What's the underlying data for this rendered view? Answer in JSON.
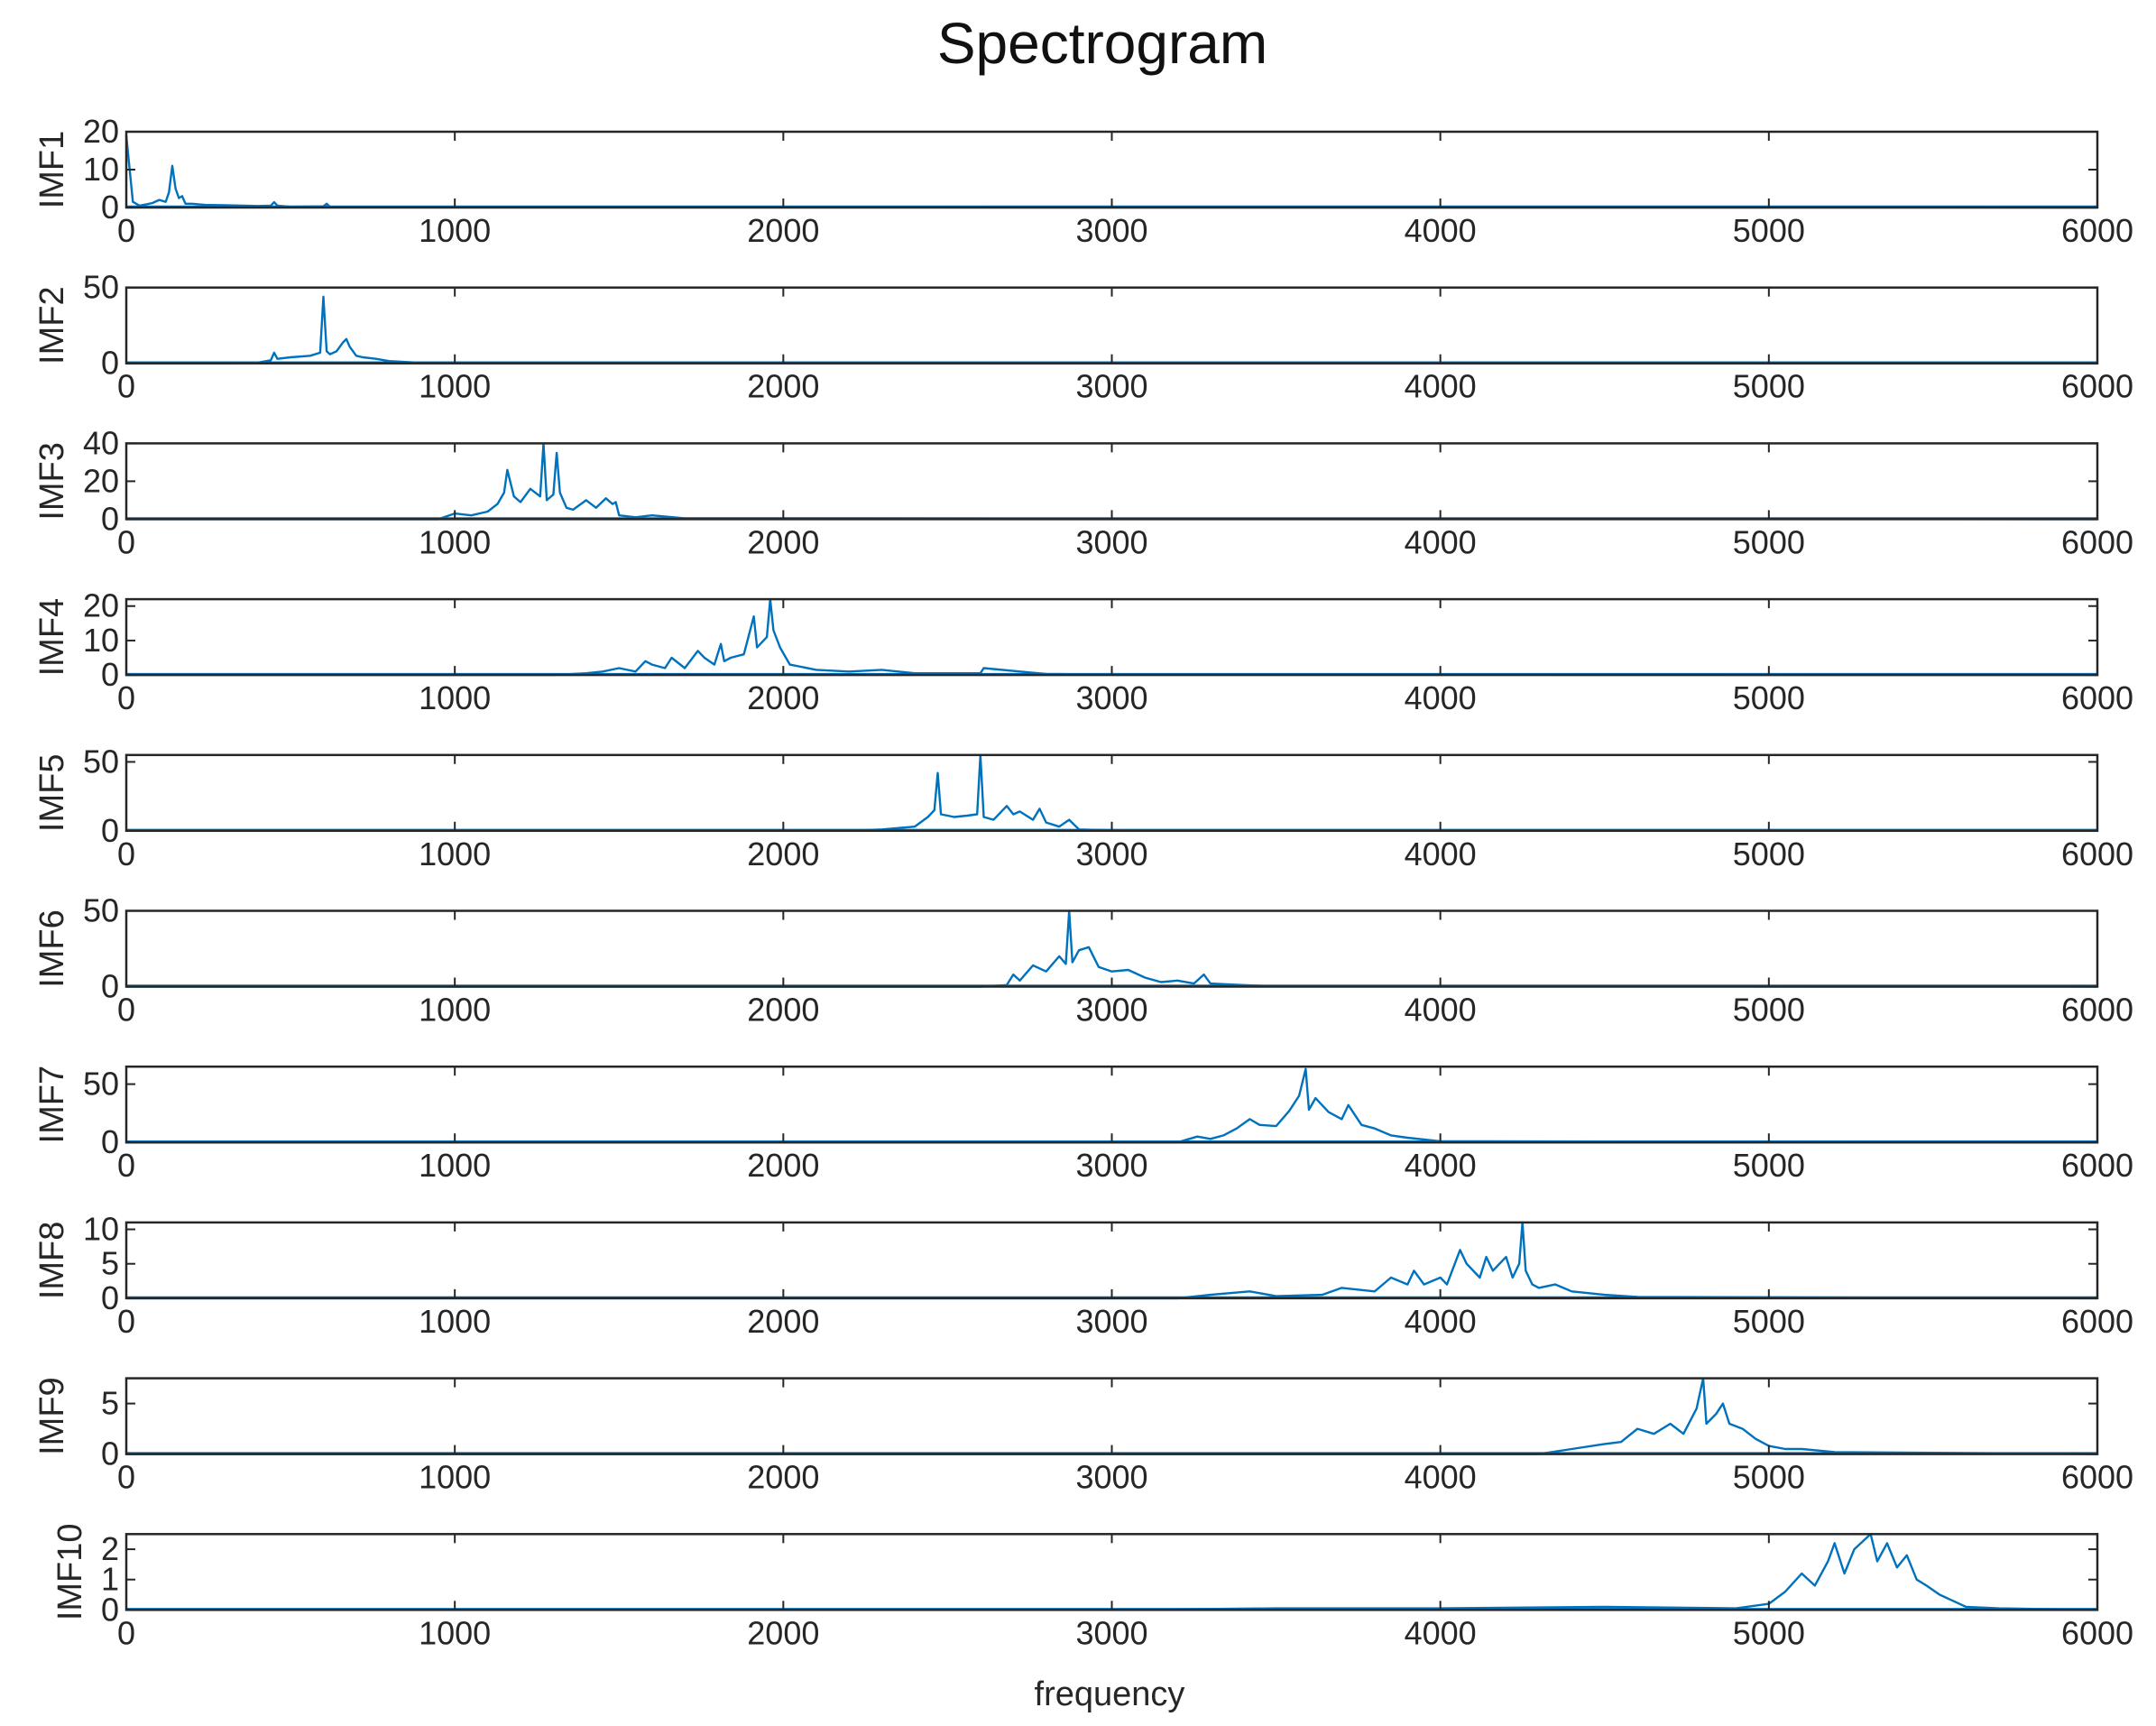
{
  "chart_data": {
    "type": "line",
    "title": "Spectrogram",
    "xlabel": "frequency",
    "xlim": [
      0,
      6000
    ],
    "xticks": [
      0,
      1000,
      2000,
      3000,
      4000,
      5000,
      6000
    ],
    "line_color": "#0072BD",
    "axis_color": "#262626",
    "panels": [
      {
        "ylabel": "IMF1",
        "ylim": [
          0,
          20
        ],
        "yticks": [
          0,
          10,
          20
        ],
        "x": [
          0,
          20,
          40,
          60,
          80,
          100,
          120,
          130,
          140,
          150,
          160,
          170,
          180,
          200,
          240,
          300,
          360,
          400,
          440,
          450,
          460,
          500,
          600,
          610,
          620,
          700,
          900,
          1200,
          6000
        ],
        "y": [
          19,
          1.5,
          0.5,
          0.8,
          1.2,
          2,
          1.5,
          4,
          11,
          5,
          2.5,
          3,
          1,
          1,
          0.7,
          0.6,
          0.5,
          0.4,
          0.5,
          1.4,
          0.5,
          0.2,
          0.3,
          1,
          0.2,
          0.2,
          0.1,
          0.05,
          0
        ]
      },
      {
        "ylabel": "IMF2",
        "ylim": [
          0,
          50
        ],
        "yticks": [
          0,
          50
        ],
        "x": [
          0,
          300,
          400,
          440,
          450,
          460,
          500,
          560,
          590,
          600,
          610,
          620,
          640,
          660,
          670,
          680,
          700,
          720,
          760,
          800,
          900,
          6000
        ],
        "y": [
          0,
          0,
          0.5,
          2,
          7,
          3,
          4,
          5,
          7,
          44,
          8,
          6,
          8,
          14,
          16,
          11,
          5,
          4,
          3,
          1.5,
          0.3,
          0
        ]
      },
      {
        "ylabel": "IMF3",
        "ylim": [
          0,
          40
        ],
        "yticks": [
          0,
          20,
          40
        ],
        "x": [
          0,
          950,
          1000,
          1050,
          1100,
          1130,
          1150,
          1160,
          1180,
          1200,
          1230,
          1260,
          1270,
          1280,
          1300,
          1310,
          1320,
          1340,
          1360,
          1400,
          1430,
          1460,
          1480,
          1490,
          1500,
          1550,
          1600,
          1700,
          6000
        ],
        "y": [
          0,
          0,
          3,
          2,
          4,
          8,
          14,
          26,
          12,
          9,
          16,
          12,
          40,
          10,
          13,
          35,
          14,
          6,
          5,
          10,
          6,
          11,
          8,
          9,
          2,
          1,
          2,
          0.5,
          0
        ]
      },
      {
        "ylabel": "IMF4",
        "ylim": [
          0,
          22
        ],
        "yticks": [
          0,
          10,
          20
        ],
        "x": [
          0,
          1300,
          1400,
          1450,
          1500,
          1550,
          1580,
          1600,
          1640,
          1660,
          1700,
          1740,
          1760,
          1790,
          1810,
          1820,
          1840,
          1880,
          1910,
          1920,
          1950,
          1960,
          1970,
          1990,
          2020,
          2100,
          2200,
          2300,
          2400,
          2600,
          2610,
          2800,
          3000,
          6000
        ],
        "y": [
          0,
          0,
          0.5,
          1,
          2,
          1,
          4,
          3,
          2,
          5,
          2,
          7,
          5,
          3,
          9,
          4,
          5,
          6,
          17,
          8,
          11,
          22,
          13,
          8,
          3,
          1.5,
          1,
          1.5,
          0.5,
          0.5,
          2,
          0.3,
          0.1,
          0
        ]
      },
      {
        "ylabel": "IMF5",
        "ylim": [
          0,
          55
        ],
        "yticks": [
          0,
          50
        ],
        "x": [
          0,
          2200,
          2300,
          2400,
          2440,
          2460,
          2470,
          2480,
          2520,
          2560,
          2590,
          2600,
          2610,
          2640,
          2680,
          2700,
          2720,
          2760,
          2780,
          2800,
          2840,
          2870,
          2900,
          3000,
          6000
        ],
        "y": [
          0,
          0,
          1,
          3,
          10,
          15,
          42,
          12,
          10,
          11,
          12,
          55,
          10,
          8,
          18,
          12,
          14,
          8,
          16,
          6,
          3,
          8,
          1,
          0.3,
          0
        ]
      },
      {
        "ylabel": "IMF6",
        "ylim": [
          0,
          50
        ],
        "yticks": [
          0,
          50
        ],
        "x": [
          0,
          2600,
          2680,
          2700,
          2720,
          2760,
          2800,
          2840,
          2860,
          2870,
          2880,
          2900,
          2930,
          2960,
          3000,
          3050,
          3100,
          3150,
          3200,
          3250,
          3280,
          3300,
          3400,
          3500,
          6000
        ],
        "y": [
          0,
          0,
          1,
          8,
          4,
          14,
          10,
          20,
          15,
          50,
          16,
          24,
          26,
          13,
          10,
          11,
          6,
          3,
          4,
          2,
          8,
          2,
          1,
          0.2,
          0
        ]
      },
      {
        "ylabel": "IMF7",
        "ylim": [
          0,
          65
        ],
        "yticks": [
          0,
          50
        ],
        "x": [
          0,
          3200,
          3260,
          3300,
          3340,
          3380,
          3420,
          3450,
          3500,
          3540,
          3570,
          3590,
          3600,
          3620,
          3660,
          3700,
          3720,
          3760,
          3800,
          3850,
          3900,
          4000,
          6000
        ],
        "y": [
          0,
          0,
          5,
          3,
          6,
          12,
          20,
          15,
          14,
          27,
          40,
          63,
          28,
          38,
          26,
          20,
          32,
          15,
          12,
          6,
          4,
          1,
          0
        ]
      },
      {
        "ylabel": "IMF8",
        "ylim": [
          0,
          11
        ],
        "yticks": [
          0,
          5,
          10
        ],
        "x": [
          0,
          3200,
          3300,
          3420,
          3500,
          3640,
          3700,
          3800,
          3850,
          3900,
          3920,
          3950,
          4000,
          4020,
          4060,
          4080,
          4120,
          4140,
          4160,
          4200,
          4220,
          4240,
          4250,
          4260,
          4280,
          4300,
          4350,
          4400,
          4500,
          4600,
          6000
        ],
        "y": [
          0,
          0,
          0.5,
          1,
          0.3,
          0.5,
          1.5,
          1,
          3,
          2,
          4,
          2,
          3,
          2,
          7,
          5,
          3,
          6,
          4,
          6,
          3,
          5,
          11,
          4,
          2,
          1.5,
          2,
          1,
          0.5,
          0.2,
          0
        ]
      },
      {
        "ylabel": "IMF9",
        "ylim": [
          0,
          7.5
        ],
        "yticks": [
          0,
          5
        ],
        "x": [
          0,
          4300,
          4400,
          4500,
          4550,
          4600,
          4650,
          4700,
          4740,
          4780,
          4800,
          4810,
          4840,
          4860,
          4880,
          4920,
          4960,
          5000,
          5050,
          5100,
          5200,
          6000
        ],
        "y": [
          0,
          0,
          0.5,
          1,
          1.2,
          2.5,
          2,
          3,
          2,
          4.5,
          7.5,
          3,
          4,
          5,
          3,
          2.5,
          1.5,
          0.8,
          0.5,
          0.5,
          0.2,
          0
        ]
      },
      {
        "ylabel": "IMF10",
        "ylim": [
          0,
          2.5
        ],
        "yticks": [
          0,
          1,
          2
        ],
        "x": [
          0,
          3000,
          3500,
          4000,
          4500,
          4900,
          5000,
          5050,
          5100,
          5140,
          5180,
          5200,
          5230,
          5260,
          5290,
          5310,
          5330,
          5360,
          5390,
          5420,
          5450,
          5480,
          5520,
          5560,
          5600,
          5700,
          6000
        ],
        "y": [
          0,
          0,
          0.05,
          0.05,
          0.1,
          0.05,
          0.2,
          0.6,
          1.2,
          0.8,
          1.6,
          2.2,
          1.2,
          2.0,
          2.3,
          2.5,
          1.6,
          2.2,
          1.4,
          1.8,
          1.0,
          0.8,
          0.5,
          0.3,
          0.1,
          0.05,
          0
        ]
      }
    ]
  }
}
